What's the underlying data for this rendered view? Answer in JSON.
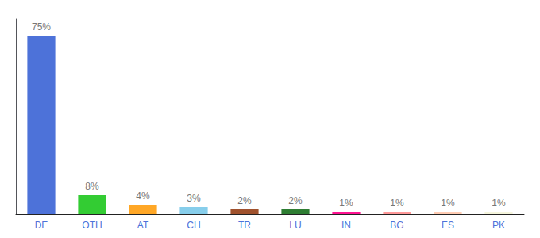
{
  "chart_data": {
    "type": "bar",
    "categories": [
      "DE",
      "OTH",
      "AT",
      "CH",
      "TR",
      "LU",
      "IN",
      "BG",
      "ES",
      "PK"
    ],
    "values": [
      75,
      8,
      4,
      3,
      2,
      2,
      1,
      1,
      1,
      1
    ],
    "value_labels": [
      "75%",
      "8%",
      "4%",
      "3%",
      "2%",
      "2%",
      "1%",
      "1%",
      "1%",
      "1%"
    ],
    "colors": [
      "#4d72d9",
      "#33cc33",
      "#FFA726",
      "#87CEEB",
      "#A0522D",
      "#2e7d32",
      "#FF1493",
      "#FF9999",
      "#FFCCB3",
      "#F5F5DC"
    ],
    "ylim": [
      0,
      82
    ],
    "grid": false,
    "data_labels": true,
    "tick_labels": "x"
  }
}
